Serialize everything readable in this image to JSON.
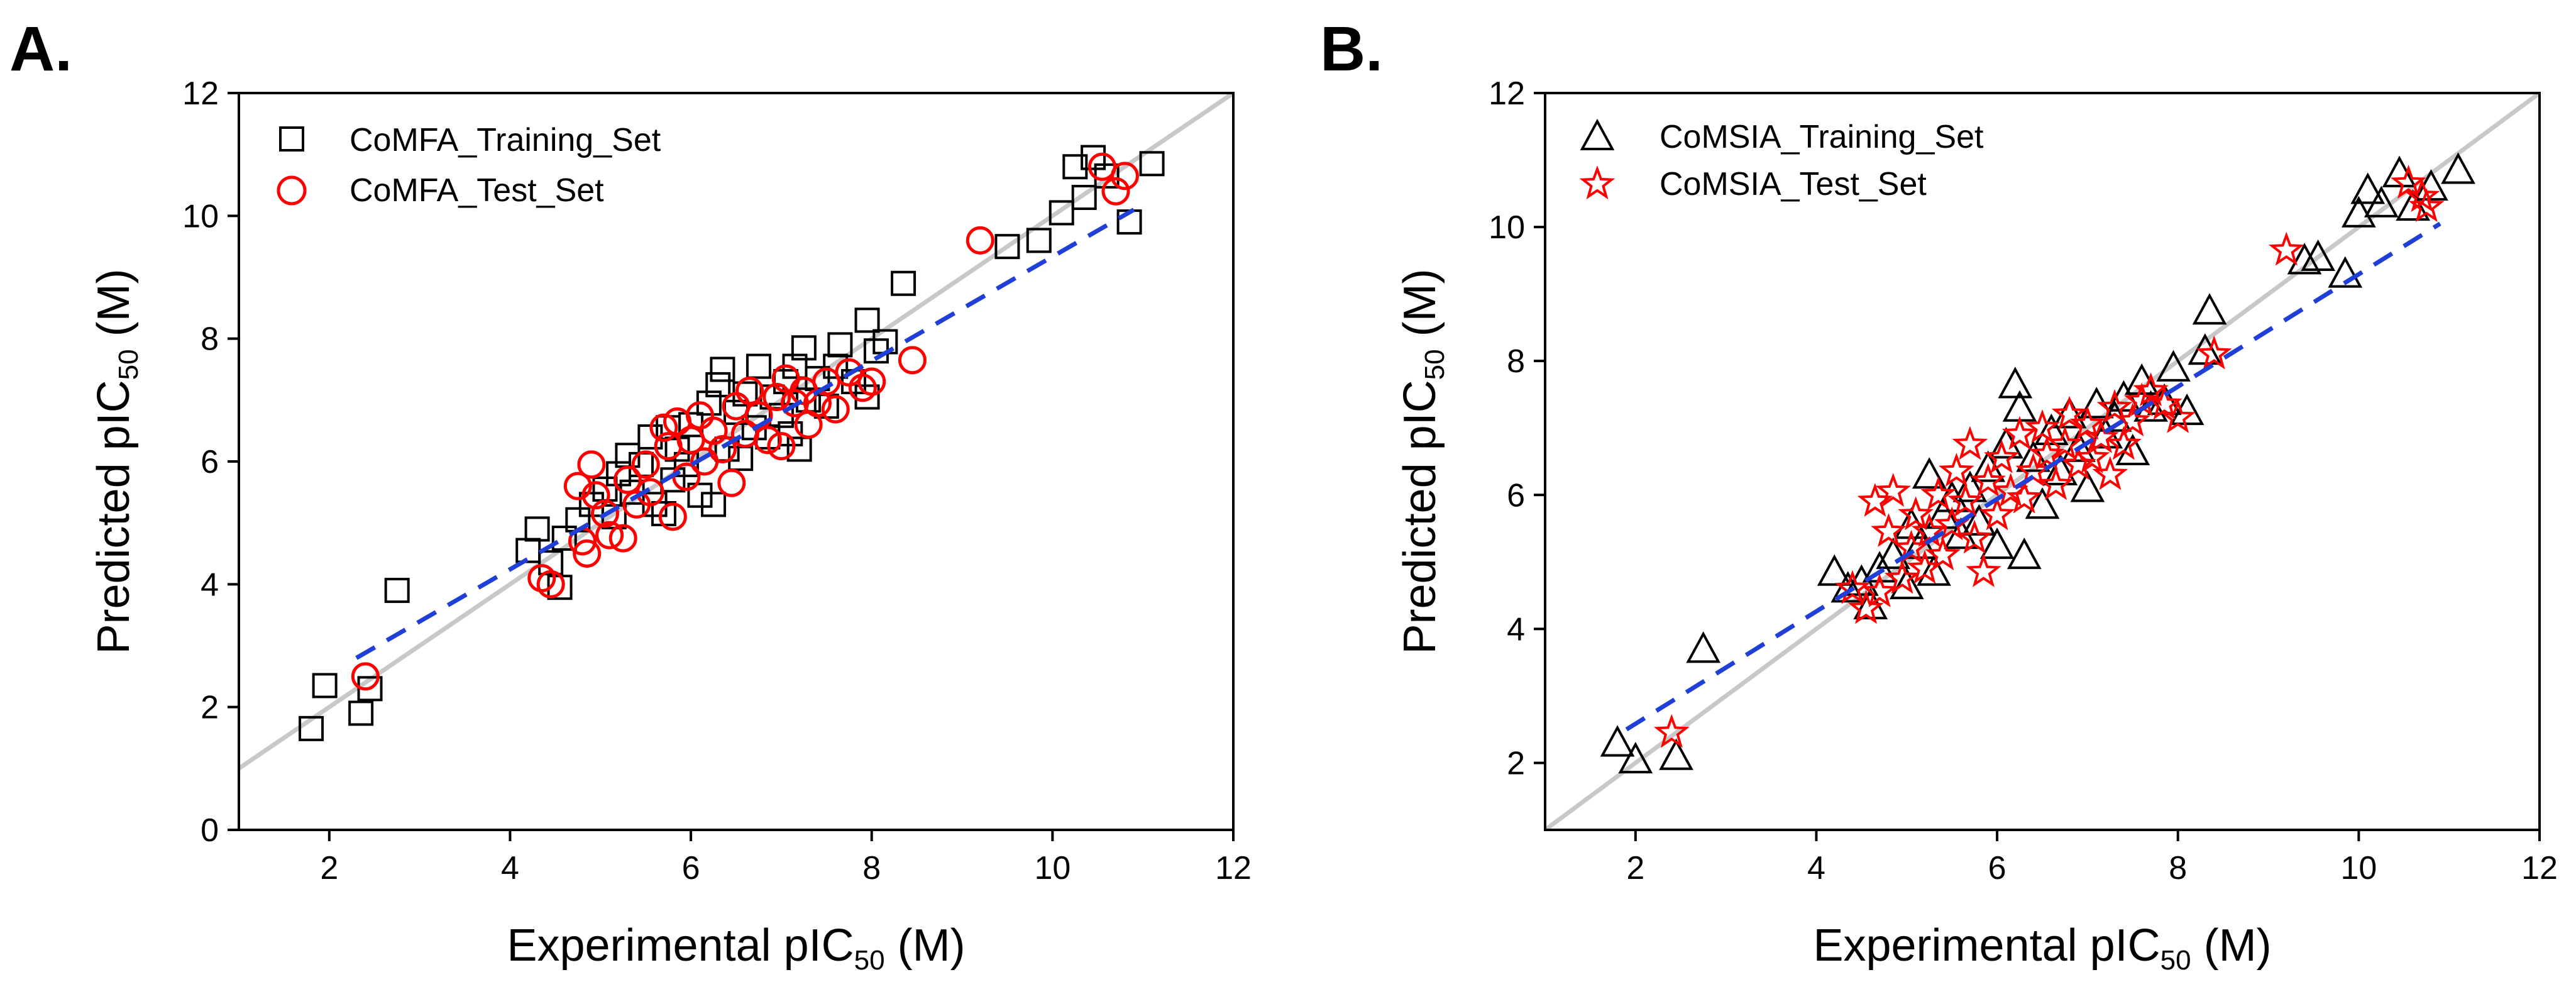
{
  "chart_data": [
    {
      "type": "scatter",
      "panel_label": "A.",
      "xlabel_main": "Experimental pIC",
      "xlabel_sub": "50",
      "xlabel_unit": " (M)",
      "ylabel_main": "Predicted pIC",
      "ylabel_sub": "50",
      "ylabel_unit": " (M)",
      "xlim": [
        1,
        12
      ],
      "ylim": [
        0,
        12
      ],
      "xticks": [
        2,
        4,
        6,
        8,
        10,
        12
      ],
      "yticks": [
        0,
        2,
        4,
        6,
        8,
        10,
        12
      ],
      "xtick_labels": [
        "2",
        "4",
        "6",
        "8",
        "10",
        "12"
      ],
      "ytick_labels": [
        "0",
        "2",
        "4",
        "6",
        "8",
        "10",
        "12"
      ],
      "identity_line": {
        "x": [
          1,
          12
        ],
        "y": [
          1,
          12
        ],
        "color": "#c8c8c8"
      },
      "fit_line": {
        "x": [
          2.3,
          10.9
        ],
        "y": [
          2.8,
          10.1
        ],
        "color": "#1f3fd6"
      },
      "legend_position": "top-left",
      "series": [
        {
          "name": "CoMFA_Training_Set",
          "marker": "square",
          "color": "#000000",
          "points": [
            [
              1.8,
              1.65
            ],
            [
              1.95,
              2.35
            ],
            [
              2.35,
              1.9
            ],
            [
              2.45,
              2.3
            ],
            [
              2.75,
              3.9
            ],
            [
              4.2,
              4.55
            ],
            [
              4.3,
              4.9
            ],
            [
              4.45,
              4.35
            ],
            [
              4.55,
              3.95
            ],
            [
              4.6,
              4.75
            ],
            [
              4.75,
              5.05
            ],
            [
              4.9,
              5.3
            ],
            [
              5.05,
              5.55
            ],
            [
              5.15,
              5.1
            ],
            [
              5.2,
              5.8
            ],
            [
              5.3,
              6.1
            ],
            [
              5.35,
              5.5
            ],
            [
              5.45,
              5.95
            ],
            [
              5.55,
              6.4
            ],
            [
              5.6,
              5.3
            ],
            [
              5.7,
              5.15
            ],
            [
              5.75,
              6.55
            ],
            [
              5.8,
              5.7
            ],
            [
              5.85,
              6.2
            ],
            [
              5.95,
              5.95
            ],
            [
              6.0,
              6.6
            ],
            [
              6.1,
              5.45
            ],
            [
              6.2,
              6.95
            ],
            [
              6.25,
              5.3
            ],
            [
              6.3,
              7.25
            ],
            [
              6.35,
              7.5
            ],
            [
              6.4,
              6.2
            ],
            [
              6.5,
              6.8
            ],
            [
              6.55,
              6.05
            ],
            [
              6.6,
              7.1
            ],
            [
              6.7,
              6.55
            ],
            [
              6.75,
              7.55
            ],
            [
              6.85,
              6.4
            ],
            [
              6.9,
              7.05
            ],
            [
              7.0,
              6.75
            ],
            [
              7.05,
              7.3
            ],
            [
              7.1,
              6.45
            ],
            [
              7.15,
              7.55
            ],
            [
              7.2,
              6.2
            ],
            [
              7.25,
              7.85
            ],
            [
              7.3,
              7.0
            ],
            [
              7.4,
              7.35
            ],
            [
              7.5,
              6.9
            ],
            [
              7.6,
              7.55
            ],
            [
              7.65,
              7.9
            ],
            [
              7.8,
              7.3
            ],
            [
              7.95,
              8.3
            ],
            [
              7.95,
              7.05
            ],
            [
              8.05,
              7.8
            ],
            [
              8.15,
              7.95
            ],
            [
              8.35,
              8.9
            ],
            [
              9.5,
              9.5
            ],
            [
              9.85,
              9.6
            ],
            [
              10.1,
              10.05
            ],
            [
              10.25,
              10.8
            ],
            [
              10.35,
              10.3
            ],
            [
              10.45,
              10.95
            ],
            [
              10.6,
              10.65
            ],
            [
              10.85,
              9.9
            ],
            [
              11.1,
              10.85
            ]
          ]
        },
        {
          "name": "CoMFA_Test_Set",
          "marker": "circle",
          "color": "#ff0000",
          "points": [
            [
              2.4,
              2.5
            ],
            [
              4.35,
              4.1
            ],
            [
              4.45,
              4.0
            ],
            [
              4.75,
              5.6
            ],
            [
              4.8,
              4.7
            ],
            [
              4.85,
              4.5
            ],
            [
              4.9,
              5.95
            ],
            [
              4.95,
              5.45
            ],
            [
              5.05,
              5.15
            ],
            [
              5.1,
              4.8
            ],
            [
              5.25,
              4.75
            ],
            [
              5.3,
              5.7
            ],
            [
              5.4,
              5.3
            ],
            [
              5.5,
              5.95
            ],
            [
              5.55,
              5.5
            ],
            [
              5.7,
              6.55
            ],
            [
              5.75,
              6.25
            ],
            [
              5.8,
              5.1
            ],
            [
              5.85,
              6.65
            ],
            [
              5.95,
              5.75
            ],
            [
              6.0,
              6.35
            ],
            [
              6.1,
              6.75
            ],
            [
              6.15,
              6.0
            ],
            [
              6.25,
              6.5
            ],
            [
              6.35,
              6.2
            ],
            [
              6.45,
              5.65
            ],
            [
              6.5,
              6.9
            ],
            [
              6.6,
              6.45
            ],
            [
              6.65,
              7.15
            ],
            [
              6.75,
              6.75
            ],
            [
              6.85,
              6.35
            ],
            [
              6.95,
              7.05
            ],
            [
              7.0,
              6.25
            ],
            [
              7.05,
              7.35
            ],
            [
              7.15,
              6.95
            ],
            [
              7.25,
              7.15
            ],
            [
              7.3,
              6.6
            ],
            [
              7.4,
              6.95
            ],
            [
              7.5,
              7.3
            ],
            [
              7.6,
              6.85
            ],
            [
              7.75,
              7.45
            ],
            [
              7.9,
              7.2
            ],
            [
              8.0,
              7.3
            ],
            [
              8.45,
              7.65
            ],
            [
              9.2,
              9.6
            ],
            [
              10.55,
              10.8
            ],
            [
              10.7,
              10.4
            ],
            [
              10.8,
              10.65
            ]
          ]
        }
      ]
    },
    {
      "type": "scatter",
      "panel_label": "B.",
      "xlabel_main": "Experimental pIC",
      "xlabel_sub": "50",
      "xlabel_unit": " (M)",
      "ylabel_main": "Predicted pIC",
      "ylabel_sub": "50",
      "ylabel_unit": " (M)",
      "xlim": [
        1,
        12
      ],
      "ylim": [
        1,
        12
      ],
      "xticks": [
        2,
        4,
        6,
        8,
        10,
        12
      ],
      "yticks": [
        2,
        4,
        6,
        8,
        10,
        12
      ],
      "xtick_labels": [
        "2",
        "4",
        "6",
        "8",
        "10",
        "12"
      ],
      "ytick_labels": [
        "2",
        "4",
        "6",
        "8",
        "10",
        "12"
      ],
      "identity_line": {
        "x": [
          1,
          12
        ],
        "y": [
          1,
          12
        ],
        "color": "#c8c8c8"
      },
      "fit_line": {
        "x": [
          1.9,
          10.9
        ],
        "y": [
          2.5,
          10.05
        ],
        "color": "#1f3fd6"
      },
      "legend_position": "top-left",
      "series": [
        {
          "name": "CoMSIA_Training_Set",
          "marker": "triangle",
          "color": "#000000",
          "points": [
            [
              1.8,
              2.3
            ],
            [
              2.0,
              2.05
            ],
            [
              2.45,
              2.1
            ],
            [
              2.75,
              3.7
            ],
            [
              4.2,
              4.85
            ],
            [
              4.35,
              4.6
            ],
            [
              4.5,
              4.7
            ],
            [
              4.6,
              4.35
            ],
            [
              4.7,
              4.9
            ],
            [
              4.85,
              5.1
            ],
            [
              5.0,
              4.65
            ],
            [
              5.05,
              5.55
            ],
            [
              5.15,
              5.25
            ],
            [
              5.25,
              6.3
            ],
            [
              5.3,
              4.85
            ],
            [
              5.4,
              5.7
            ],
            [
              5.5,
              5.95
            ],
            [
              5.6,
              5.4
            ],
            [
              5.7,
              6.1
            ],
            [
              5.8,
              5.6
            ],
            [
              5.9,
              6.4
            ],
            [
              6.0,
              5.25
            ],
            [
              6.1,
              6.75
            ],
            [
              6.2,
              7.65
            ],
            [
              6.25,
              7.3
            ],
            [
              6.3,
              5.1
            ],
            [
              6.4,
              6.55
            ],
            [
              6.5,
              5.85
            ],
            [
              6.6,
              6.95
            ],
            [
              6.7,
              6.35
            ],
            [
              6.8,
              7.2
            ],
            [
              6.9,
              6.7
            ],
            [
              7.0,
              6.1
            ],
            [
              7.1,
              7.35
            ],
            [
              7.2,
              6.9
            ],
            [
              7.3,
              7.15
            ],
            [
              7.4,
              7.45
            ],
            [
              7.5,
              6.65
            ],
            [
              7.6,
              7.7
            ],
            [
              7.7,
              7.3
            ],
            [
              7.85,
              7.4
            ],
            [
              7.95,
              7.9
            ],
            [
              8.1,
              7.25
            ],
            [
              8.3,
              8.15
            ],
            [
              8.35,
              8.75
            ],
            [
              9.4,
              9.5
            ],
            [
              9.55,
              9.55
            ],
            [
              9.85,
              9.3
            ],
            [
              10.0,
              10.2
            ],
            [
              10.1,
              10.55
            ],
            [
              10.25,
              10.35
            ],
            [
              10.45,
              10.8
            ],
            [
              10.6,
              10.3
            ],
            [
              10.8,
              10.6
            ],
            [
              11.1,
              10.85
            ]
          ]
        },
        {
          "name": "CoMSIA_Test_Set",
          "marker": "star",
          "color": "#ff0000",
          "points": [
            [
              2.4,
              2.45
            ],
            [
              4.4,
              4.6
            ],
            [
              4.55,
              4.3
            ],
            [
              4.65,
              5.9
            ],
            [
              4.7,
              4.55
            ],
            [
              4.8,
              5.45
            ],
            [
              4.85,
              6.05
            ],
            [
              4.95,
              4.75
            ],
            [
              5.05,
              5.2
            ],
            [
              5.1,
              5.7
            ],
            [
              5.2,
              4.9
            ],
            [
              5.25,
              5.45
            ],
            [
              5.35,
              6.0
            ],
            [
              5.4,
              5.1
            ],
            [
              5.5,
              5.55
            ],
            [
              5.55,
              6.35
            ],
            [
              5.65,
              5.9
            ],
            [
              5.7,
              6.75
            ],
            [
              5.75,
              5.35
            ],
            [
              5.85,
              4.85
            ],
            [
              5.9,
              6.2
            ],
            [
              6.0,
              5.7
            ],
            [
              6.05,
              6.55
            ],
            [
              6.15,
              6.05
            ],
            [
              6.25,
              6.9
            ],
            [
              6.3,
              5.95
            ],
            [
              6.4,
              6.35
            ],
            [
              6.5,
              7.0
            ],
            [
              6.55,
              6.6
            ],
            [
              6.65,
              6.15
            ],
            [
              6.75,
              6.75
            ],
            [
              6.8,
              7.2
            ],
            [
              6.9,
              6.45
            ],
            [
              7.0,
              7.05
            ],
            [
              7.05,
              6.55
            ],
            [
              7.15,
              6.85
            ],
            [
              7.25,
              6.3
            ],
            [
              7.3,
              7.3
            ],
            [
              7.4,
              6.75
            ],
            [
              7.5,
              7.1
            ],
            [
              7.6,
              7.4
            ],
            [
              7.7,
              7.55
            ],
            [
              7.85,
              7.35
            ],
            [
              8.0,
              7.15
            ],
            [
              8.4,
              8.1
            ],
            [
              9.2,
              9.65
            ],
            [
              10.55,
              10.65
            ],
            [
              10.7,
              10.45
            ],
            [
              10.75,
              10.3
            ]
          ]
        }
      ]
    }
  ]
}
